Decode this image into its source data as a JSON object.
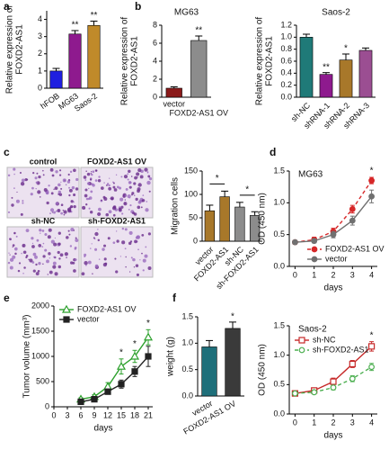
{
  "chart_data": [
    {
      "type": "bar",
      "panel": "a",
      "ylabel": [
        "Relative expression of",
        "FOXD2-AS1"
      ],
      "categories": [
        "hFOB",
        "MG63",
        "Saos-2"
      ],
      "values": [
        1.0,
        3.15,
        3.65
      ],
      "errors": [
        0.15,
        0.2,
        0.25
      ],
      "colors": [
        "#1f1fe0",
        "#8e1a8e",
        "#c08a2a"
      ],
      "ylim": [
        0,
        4.5
      ],
      "yticks": [
        0,
        1,
        2,
        3,
        4
      ],
      "significance": [
        null,
        "**",
        "**"
      ]
    },
    {
      "type": "bar",
      "panel": "b",
      "title": "MG63",
      "ylabel": [
        "Relative expression of",
        "FOXD2-AS1"
      ],
      "categories": [
        "vector",
        "FOXD2-AS1 OV"
      ],
      "values": [
        1.0,
        6.3
      ],
      "errors": [
        0.15,
        0.5
      ],
      "colors": [
        "#8b1a1a",
        "#8c8c8c"
      ],
      "ylim": [
        0,
        8
      ],
      "yticks": [
        0,
        2,
        4,
        6,
        8
      ],
      "significance": [
        null,
        "**"
      ]
    },
    {
      "type": "bar",
      "title": "Saos-2",
      "ylabel": [
        "Relative expression of",
        "FOXD2-AS1"
      ],
      "categories": [
        "sh-NC",
        "shRNA-1",
        "shRNA-2",
        "shRNA-3"
      ],
      "values": [
        1.0,
        0.38,
        0.62,
        0.78
      ],
      "errors": [
        0.05,
        0.03,
        0.1,
        0.04
      ],
      "colors": [
        "#1f7a78",
        "#8e1a8e",
        "#a8782a",
        "#9b4e92"
      ],
      "ylim": [
        0,
        1.2
      ],
      "yticks": [
        {
          "value": 0,
          "label": "0.0"
        },
        {
          "value": 0.2,
          "label": "0.2"
        },
        {
          "value": 0.4,
          "label": "0.4"
        },
        {
          "value": 0.6,
          "label": "0.6"
        },
        {
          "value": 0.8,
          "label": "0.8"
        },
        {
          "value": 1.0,
          "label": "1.0"
        },
        {
          "value": 1.2,
          "label": "1.2"
        }
      ],
      "significance": [
        null,
        "**",
        "*",
        null
      ]
    },
    {
      "type": "bar",
      "ylabel": [
        "Migration cells"
      ],
      "categories": [
        "vector",
        "FOXD2-AS1",
        "sh-NC",
        "sh-FOXD2-AS1"
      ],
      "values": [
        65,
        95,
        73,
        55
      ],
      "errors": [
        12,
        12,
        10,
        8
      ],
      "colors": [
        "#a8782a",
        "#a8782a",
        "#8c8c8c",
        "#8c8c8c"
      ],
      "ylim": [
        0,
        150
      ],
      "yticks": [
        0,
        50,
        100,
        150
      ],
      "comparisons": [
        {
          "pair": [
            0,
            1
          ],
          "label": "*"
        },
        {
          "pair": [
            2,
            3
          ],
          "label": "*"
        }
      ]
    },
    {
      "type": "line",
      "panel": "d",
      "title": "MG63",
      "xlabel": "days",
      "ylabel": [
        "OD (450 nm)"
      ],
      "x": [
        0,
        1,
        2,
        3,
        4
      ],
      "xlim": [
        -0.3,
        4.3
      ],
      "xticks": [
        0,
        1,
        2,
        3,
        4
      ],
      "ylim": [
        0,
        1.5
      ],
      "yticks": [
        {
          "value": 0,
          "label": "0.0"
        },
        {
          "value": 0.5,
          "label": "0.5"
        },
        {
          "value": 1.0,
          "label": "1.0"
        },
        {
          "value": 1.5,
          "label": "1.5"
        }
      ],
      "legend": "lower right",
      "series": [
        {
          "name": "FOXD2-AS1 OV",
          "color": "#d62728",
          "dashed": true,
          "marker": "circle",
          "open": false,
          "values": [
            0.38,
            0.42,
            0.55,
            0.9,
            1.35
          ],
          "errors": [
            0.03,
            0.04,
            0.05,
            0.06,
            0.05
          ]
        },
        {
          "name": "vector",
          "color": "#707070",
          "dashed": false,
          "marker": "circle",
          "open": false,
          "values": [
            0.38,
            0.4,
            0.5,
            0.72,
            1.1
          ],
          "errors": [
            0.03,
            0.03,
            0.05,
            0.07,
            0.1
          ]
        }
      ],
      "significance": [
        null,
        null,
        null,
        null,
        "*"
      ]
    },
    {
      "type": "line",
      "panel": "e",
      "xlabel": "days",
      "ylabel": [
        "Tumor volume (mm³)"
      ],
      "x": [
        6,
        9,
        12,
        15,
        18,
        21
      ],
      "xlim": [
        0,
        22
      ],
      "xticks": [
        0,
        3,
        6,
        9,
        12,
        15,
        18,
        21
      ],
      "ylim": [
        0,
        2000
      ],
      "yticks": [
        0,
        500,
        1000,
        1500,
        2000
      ],
      "legend": "upper left",
      "series": [
        {
          "name": "FOXD2-AS1 OV",
          "color": "#2ca02c",
          "dashed": false,
          "marker": "triangle",
          "open": true,
          "values": [
            150,
            200,
            400,
            800,
            1000,
            1380
          ],
          "errors": [
            30,
            40,
            80,
            150,
            120,
            150
          ]
        },
        {
          "name": "vector",
          "color": "#222222",
          "dashed": false,
          "marker": "square",
          "open": false,
          "values": [
            100,
            150,
            300,
            450,
            700,
            1000
          ],
          "errors": [
            20,
            30,
            50,
            80,
            100,
            200
          ]
        }
      ],
      "significance": [
        null,
        null,
        null,
        "*",
        "*",
        "*"
      ]
    },
    {
      "type": "bar",
      "panel": "f",
      "ylabel": [
        "weight (g)"
      ],
      "categories": [
        "vector",
        "FOXD2-AS1 OV"
      ],
      "values": [
        0.93,
        1.28
      ],
      "errors": [
        0.12,
        0.12
      ],
      "colors": [
        "#1f6f7a",
        "#3a3a3a"
      ],
      "ylim": [
        0,
        1.5
      ],
      "yticks": [
        {
          "value": 0,
          "label": "0.0"
        },
        {
          "value": 0.5,
          "label": "0.5"
        },
        {
          "value": 1.0,
          "label": "1.0"
        },
        {
          "value": 1.5,
          "label": "1.5"
        }
      ],
      "significance": [
        null,
        "*"
      ]
    },
    {
      "type": "line",
      "title": "Saos-2",
      "xlabel": "days",
      "ylabel": [
        "OD (450 nm)"
      ],
      "x": [
        0,
        1,
        2,
        3,
        4
      ],
      "xlim": [
        -0.3,
        4.3
      ],
      "xticks": [
        0,
        1,
        2,
        3,
        4
      ],
      "ylim": [
        0,
        1.5
      ],
      "yticks": [
        {
          "value": 0,
          "label": "0.0"
        },
        {
          "value": 0.5,
          "label": "0.5"
        },
        {
          "value": 1.0,
          "label": "1.0"
        },
        {
          "value": 1.5,
          "label": "1.5"
        }
      ],
      "legend": "upper left",
      "series": [
        {
          "name": "sh-NC",
          "color": "#c62828",
          "dashed": false,
          "marker": "square",
          "open": true,
          "values": [
            0.35,
            0.4,
            0.55,
            0.85,
            1.15
          ],
          "errors": [
            0.03,
            0.04,
            0.06,
            0.06,
            0.08
          ]
        },
        {
          "name": "sh-FOXD2-AS1",
          "color": "#4caf50",
          "dashed": true,
          "marker": "circle",
          "open": true,
          "values": [
            0.35,
            0.37,
            0.45,
            0.6,
            0.8
          ],
          "errors": [
            0.03,
            0.03,
            0.04,
            0.05,
            0.06
          ]
        }
      ],
      "significance": [
        null,
        null,
        null,
        null,
        "*"
      ]
    }
  ],
  "micrographs": {
    "panel": "c",
    "labels": [
      "control",
      "FOXD2-AS1 OV",
      "sh-NC",
      "sh-FOXD2-AS1"
    ]
  }
}
